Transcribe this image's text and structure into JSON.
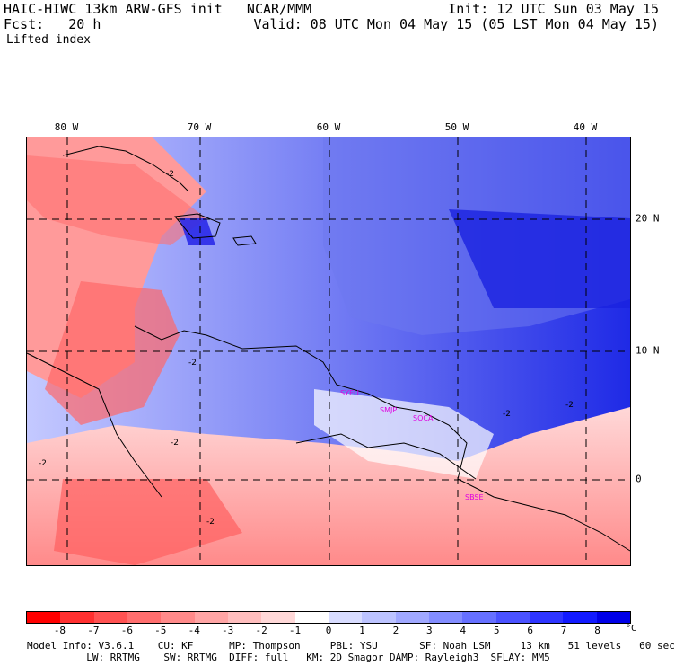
{
  "header": {
    "title": "HAIC-HIWC 13km ARW-GFS init   NCAR/MMM",
    "init": "Init: 12 UTC Sun 03 May 15",
    "fcst": "Fcst:   20 h",
    "valid": "Valid: 08 UTC Mon 04 May 15 (05 LST Mon 04 May 15)",
    "field": "Lifted index"
  },
  "axes": {
    "lon_labels": [
      "80 W",
      "70 W",
      "60 W",
      "50 W",
      "40 W"
    ],
    "lat_labels": [
      "20 N",
      "10 N",
      "0"
    ]
  },
  "stations": [
    "SYEU",
    "SMJP",
    "SOCA",
    "SBSE"
  ],
  "contour_labels": [
    "-2",
    "-2",
    "-2",
    "-2",
    "-2",
    "-2",
    "-2"
  ],
  "colorbar": {
    "ticks": [
      "-8",
      "-7",
      "-6",
      "-5",
      "-4",
      "-3",
      "-2",
      "-1",
      "0",
      "1",
      "2",
      "3",
      "4",
      "5",
      "6",
      "7",
      "8"
    ],
    "unit": "°C",
    "colors": [
      "#ff0000",
      "#ff3030",
      "#ff5252",
      "#ff6e6e",
      "#ff8a8a",
      "#ffa5a5",
      "#ffbebe",
      "#ffd8d8",
      "#ffffff",
      "#d8dcff",
      "#bcc3ff",
      "#a0a8ff",
      "#838dff",
      "#6670ff",
      "#4a52ff",
      "#2e35ff",
      "#121aff",
      "#0000e8"
    ]
  },
  "model_info": {
    "line1": "Model Info: V3.6.1    CU: KF      MP: Thompson     PBL: YSU       SF: Noah LSM     13 km   51 levels   60 sec",
    "line2": "          LW: RRTMG    SW: RRTMG  DIFF: full   KM: 2D Smagor DAMP: Rayleigh3  SFLAY: MM5"
  }
}
